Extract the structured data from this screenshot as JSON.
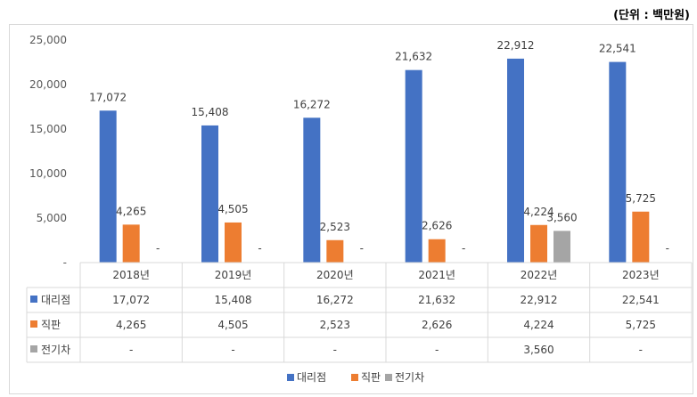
{
  "unit_label": "(단위 : 백만원)",
  "chart_data": {
    "type": "bar",
    "categories": [
      "2018년",
      "2019년",
      "2020년",
      "2021년",
      "2022년",
      "2023년"
    ],
    "series": [
      {
        "name": "대리점",
        "color": "#4472c4",
        "values": [
          17072,
          15408,
          16272,
          21632,
          22912,
          22541
        ],
        "labels": [
          "17,072",
          "15,408",
          "16,272",
          "21,632",
          "22,912",
          "22,541"
        ]
      },
      {
        "name": "직판",
        "color": "#ed7d31",
        "values": [
          4265,
          4505,
          2523,
          2626,
          4224,
          5725
        ],
        "labels": [
          "4,265",
          "4,505",
          "2,523",
          "2,626",
          "4,224",
          "5,725"
        ]
      },
      {
        "name": "전기차",
        "color": "#a5a5a5",
        "values": [
          null,
          null,
          null,
          null,
          3560,
          null
        ],
        "labels": [
          "-",
          "-",
          "-",
          "-",
          "3,560",
          "-"
        ]
      }
    ],
    "yticks": [
      "-",
      "5,000",
      "10,000",
      "15,000",
      "20,000",
      "25,000"
    ],
    "ylim": [
      0,
      25000
    ],
    "grid": false,
    "legend_position": "bottom",
    "data_table": true
  }
}
